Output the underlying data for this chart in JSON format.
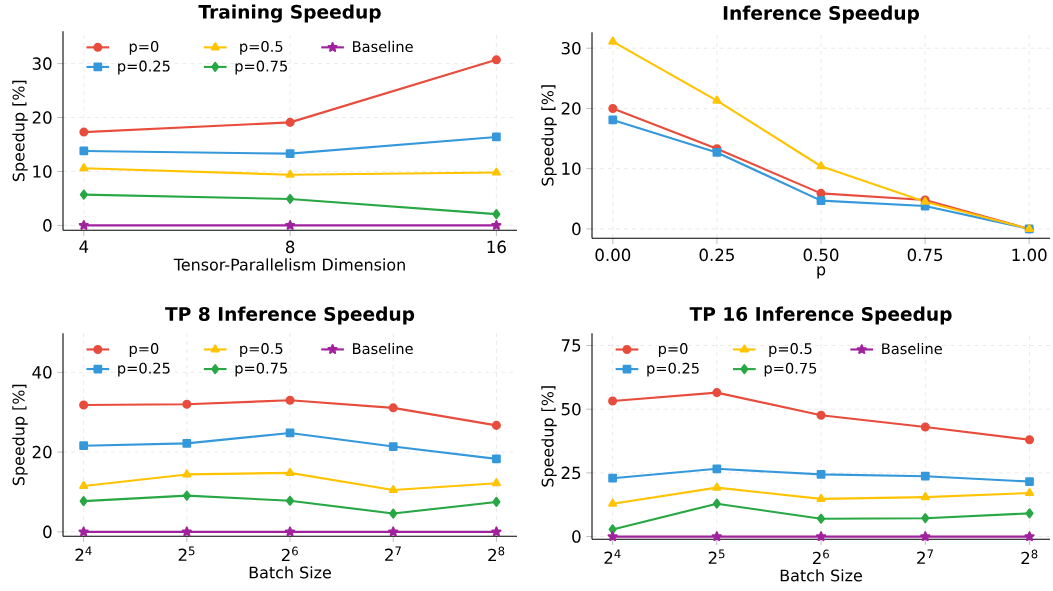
{
  "chart_data": [
    {
      "type": "line",
      "title": "Training Speedup",
      "xlabel": "Tensor-Parallelism Dimension",
      "ylabel": "Speedup [%]",
      "log": "x",
      "grid": true,
      "legend": "top",
      "xlim": [
        3.73,
        17.15
      ],
      "ylim": [
        -0.9,
        36
      ],
      "xticks": [
        4,
        8,
        16
      ],
      "yticks": [
        0,
        10,
        20,
        30
      ],
      "x": [
        4,
        8,
        16
      ],
      "series": [
        {
          "name": "p=0",
          "color": "#e74c3c",
          "marker": "circle",
          "values": [
            17.3,
            19.1,
            30.7
          ]
        },
        {
          "name": "p=0.25",
          "color": "#3498db",
          "marker": "square",
          "values": [
            13.8,
            13.3,
            16.4
          ]
        },
        {
          "name": "p=0.5",
          "color": "#ffc300",
          "marker": "triangle",
          "values": [
            10.6,
            9.4,
            9.8
          ]
        },
        {
          "name": "p=0.75",
          "color": "#28a745",
          "marker": "diamond",
          "values": [
            5.7,
            4.9,
            2.1
          ]
        },
        {
          "name": "Baseline",
          "color": "#a0229c",
          "marker": "star",
          "values": [
            0,
            0,
            0
          ]
        }
      ]
    },
    {
      "type": "line",
      "title": "Inference Speedup",
      "xlabel": "p",
      "ylabel": "Speedup [%]",
      "grid": true,
      "xlim": [
        -0.05,
        1.05
      ],
      "ylim": [
        -1.55,
        32.65
      ],
      "xticks": [
        {
          "value": 0,
          "label": "0.00"
        },
        {
          "value": 0.25,
          "label": "0.25"
        },
        {
          "value": 0.5,
          "label": "0.50"
        },
        {
          "value": 0.75,
          "label": "0.75"
        },
        {
          "value": 1,
          "label": "1.00"
        }
      ],
      "yticks": [
        0,
        10,
        20,
        30
      ],
      "x": [
        0,
        0.25,
        0.5,
        0.75,
        1
      ],
      "series": [
        {
          "color": "#e74c3c",
          "marker": "circle",
          "values": [
            20,
            13.3,
            5.9,
            4.8,
            0
          ]
        },
        {
          "color": "#3498db",
          "marker": "square",
          "values": [
            18.1,
            12.7,
            4.7,
            3.8,
            0
          ]
        },
        {
          "color": "#ffc300",
          "marker": "triangle",
          "values": [
            31.1,
            21.3,
            10.4,
            4.5,
            0
          ]
        }
      ]
    },
    {
      "type": "line",
      "title": "TP 8 Inference Speedup",
      "xlabel": "Batch Size",
      "ylabel": "Speedup [%]",
      "log": "x",
      "grid": true,
      "legend": "top",
      "xlim": [
        13.93,
        294
      ],
      "ylim": [
        -1.1,
        49.8
      ],
      "xticks": [
        {
          "value": 16,
          "label": "2$^{4}$"
        },
        {
          "value": 32,
          "label": "2$^{5}$"
        },
        {
          "value": 64,
          "label": "2$^{6}$"
        },
        {
          "value": 128,
          "label": "2$^{7}$"
        },
        {
          "value": 256,
          "label": "2$^{8}$"
        }
      ],
      "yticks": [
        0,
        20,
        40
      ],
      "x": [
        16,
        32,
        64,
        128,
        256
      ],
      "series": [
        {
          "name": "p=0",
          "color": "#e74c3c",
          "marker": "circle",
          "values": [
            31.8,
            32.0,
            33.0,
            31.1,
            26.7
          ]
        },
        {
          "name": "p=0.25",
          "color": "#3498db",
          "marker": "square",
          "values": [
            21.6,
            22.2,
            24.8,
            21.4,
            18.3
          ]
        },
        {
          "name": "p=0.5",
          "color": "#ffc300",
          "marker": "triangle",
          "values": [
            11.5,
            14.4,
            14.8,
            10.5,
            12.2
          ]
        },
        {
          "name": "p=0.75",
          "color": "#28a745",
          "marker": "diamond",
          "values": [
            7.7,
            9.1,
            7.8,
            4.6,
            7.5
          ]
        },
        {
          "name": "Baseline",
          "color": "#a0229c",
          "marker": "star",
          "values": [
            0,
            0,
            0,
            0,
            0
          ]
        }
      ]
    },
    {
      "type": "line",
      "title": "TP 16 Inference Speedup",
      "xlabel": "Batch Size",
      "ylabel": "Speedup [%]",
      "log": "x",
      "grid": true,
      "legend": "top",
      "xlim": [
        13.95,
        293.4
      ],
      "ylim": [
        -1.05,
        79.8
      ],
      "xticks": [
        {
          "value": 16,
          "label": "2$^{4}$"
        },
        {
          "value": 32,
          "label": "2$^{5}$"
        },
        {
          "value": 64,
          "label": "2$^{6}$"
        },
        {
          "value": 128,
          "label": "2$^{7}$"
        },
        {
          "value": 256,
          "label": "2$^{8}$"
        }
      ],
      "yticks": [
        0,
        25,
        50,
        75
      ],
      "x": [
        16,
        32,
        64,
        128,
        256
      ],
      "series": [
        {
          "name": "p=0",
          "color": "#e74c3c",
          "marker": "circle",
          "values": [
            53.2,
            56.5,
            47.6,
            43.0,
            38.0
          ]
        },
        {
          "name": "p=0.25",
          "color": "#3498db",
          "marker": "square",
          "values": [
            22.9,
            26.6,
            24.4,
            23.7,
            21.6
          ]
        },
        {
          "name": "p=0.5",
          "color": "#ffc300",
          "marker": "triangle",
          "values": [
            12.9,
            19.2,
            14.8,
            15.5,
            17.1
          ]
        },
        {
          "name": "p=0.75",
          "color": "#28a745",
          "marker": "diamond",
          "values": [
            2.8,
            12.9,
            7.0,
            7.2,
            9.1
          ]
        },
        {
          "name": "Baseline",
          "color": "#a0229c",
          "marker": "star",
          "values": [
            0,
            0,
            0,
            0,
            0
          ]
        }
      ]
    }
  ]
}
